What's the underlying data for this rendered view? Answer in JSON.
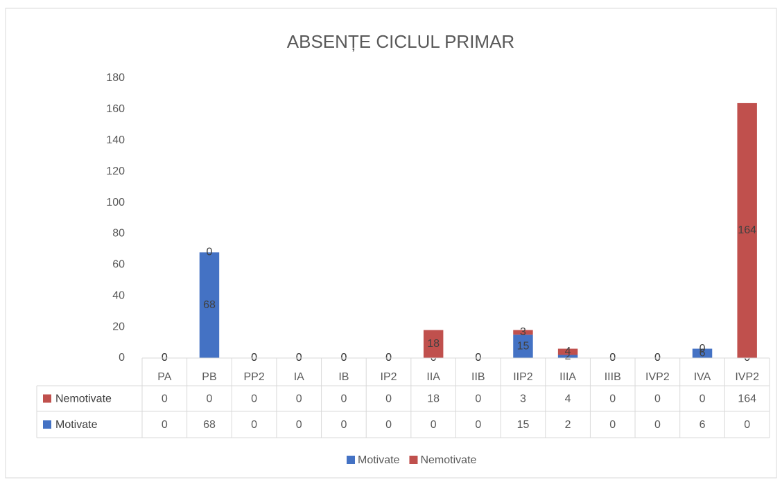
{
  "chart_data": {
    "type": "bar",
    "stacked": true,
    "title": "ABSENȚE CICLUL PRIMAR",
    "categories": [
      "PA",
      "PB",
      "PP2",
      "IA",
      "IB",
      "IP2",
      "IIA",
      "IIB",
      "IIP2",
      "IIIA",
      "IIIB",
      "IVP2",
      "IVA",
      "IVP2"
    ],
    "series": [
      {
        "name": "Motivate",
        "color": "#4472c4",
        "values": [
          0,
          68,
          0,
          0,
          0,
          0,
          0,
          0,
          15,
          2,
          0,
          0,
          6,
          0
        ]
      },
      {
        "name": "Nemotivate",
        "color": "#c0504d",
        "values": [
          0,
          0,
          0,
          0,
          0,
          0,
          18,
          0,
          3,
          4,
          0,
          0,
          0,
          164
        ]
      }
    ],
    "ylim": [
      0,
      180
    ],
    "yticks": [
      0,
      20,
      40,
      60,
      80,
      100,
      120,
      140,
      160,
      180
    ],
    "grid": false,
    "legend": "bottom",
    "data_table": true
  }
}
